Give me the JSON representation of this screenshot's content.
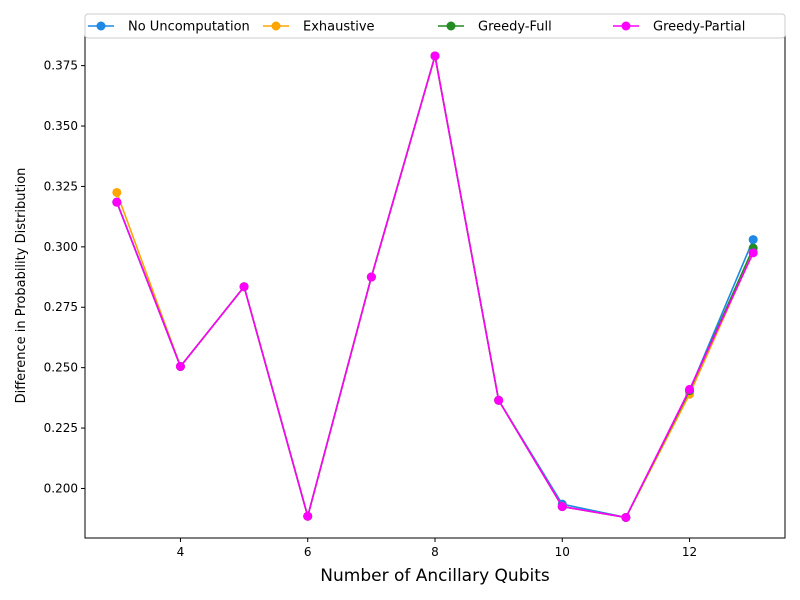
{
  "chart_data": {
    "type": "line",
    "xlabel": "Number of Ancillary Qubits",
    "ylabel": "Difference in Probability Distribution",
    "xlim": [
      2.5,
      13.5
    ],
    "ylim": [
      0.1795,
      0.3885
    ],
    "xticks": [
      4,
      6,
      8,
      10,
      12
    ],
    "xtick_labels": [
      "4",
      "6",
      "8",
      "10",
      "12"
    ],
    "yticks": [
      0.2,
      0.225,
      0.25,
      0.275,
      0.3,
      0.325,
      0.35,
      0.375
    ],
    "ytick_labels": [
      "0.200",
      "0.225",
      "0.250",
      "0.275",
      "0.300",
      "0.325",
      "0.350",
      "0.375"
    ],
    "grid": false,
    "legend_position": "top",
    "x": [
      3,
      4,
      5,
      6,
      7,
      8,
      9,
      10,
      11,
      12,
      13
    ],
    "series": [
      {
        "name": "No Uncomputation",
        "color": "#1e88e5",
        "values": [
          0.3185,
          0.2505,
          0.2835,
          0.1885,
          0.2875,
          0.379,
          0.2365,
          0.1935,
          0.188,
          0.2405,
          0.303
        ]
      },
      {
        "name": "Exhaustive",
        "color": "#ffa500",
        "values": [
          0.3225,
          0.2505,
          0.2835,
          0.1885,
          0.2875,
          0.379,
          0.2365,
          0.1925,
          0.188,
          0.239,
          0.298
        ]
      },
      {
        "name": "Greedy-Full",
        "color": "#228b22",
        "values": [
          0.3185,
          0.2505,
          0.2835,
          0.1885,
          0.2875,
          0.379,
          0.2365,
          0.1925,
          0.188,
          0.2405,
          0.2995
        ]
      },
      {
        "name": "Greedy-Partial",
        "color": "#ff00ff",
        "values": [
          0.3185,
          0.2505,
          0.2835,
          0.1885,
          0.2875,
          0.379,
          0.2365,
          0.1925,
          0.188,
          0.241,
          0.2975
        ]
      }
    ]
  }
}
